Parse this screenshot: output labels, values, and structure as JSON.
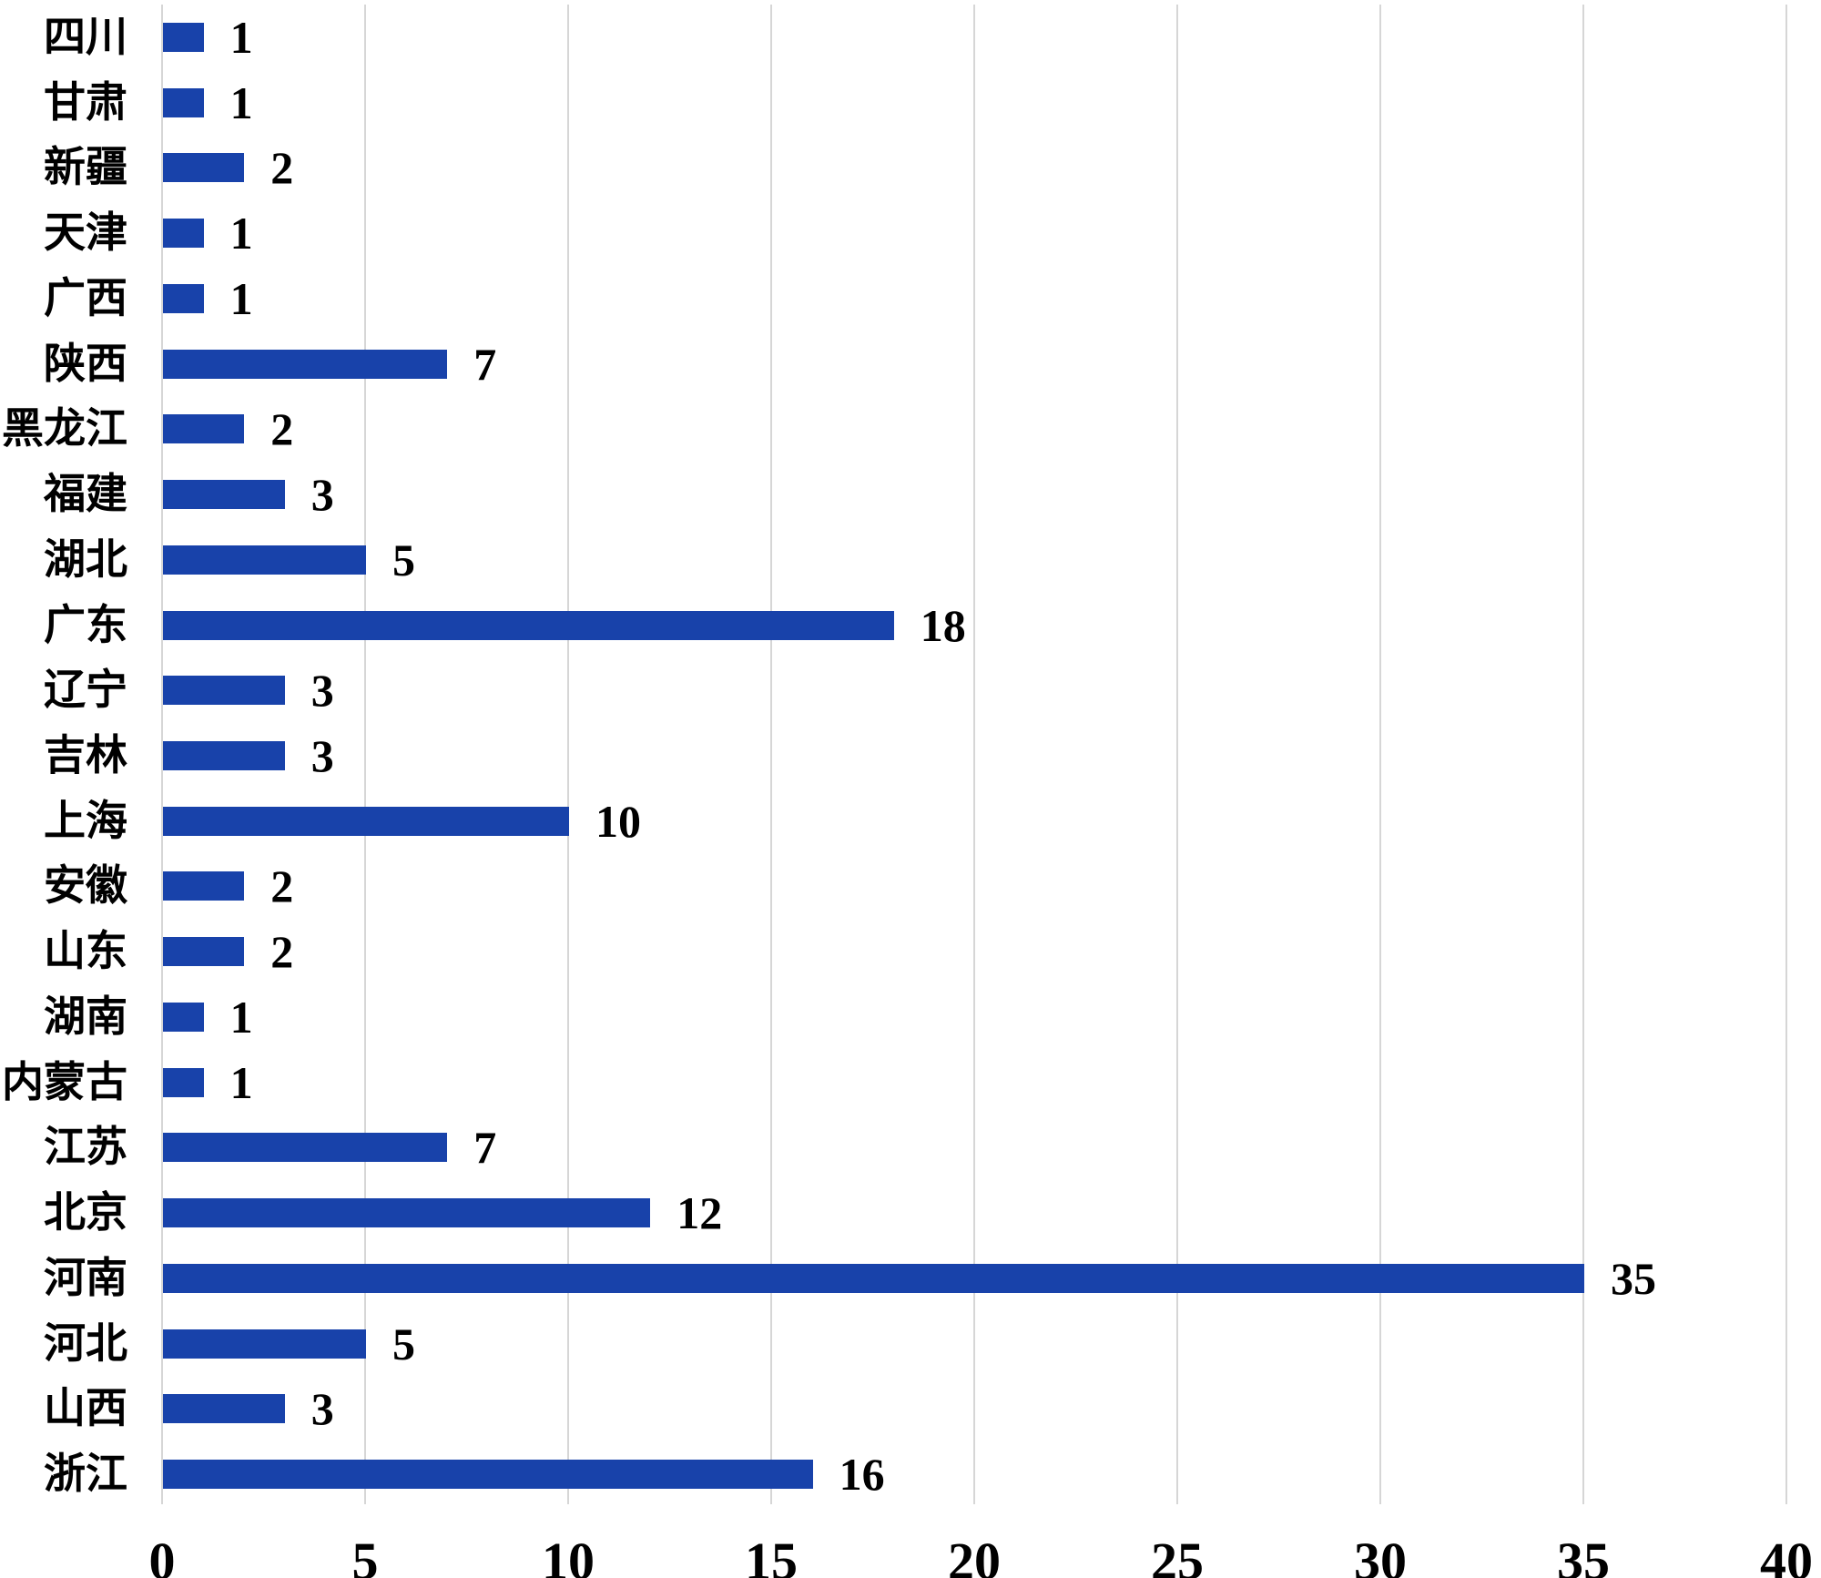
{
  "chart_data": {
    "type": "bar",
    "orientation": "horizontal",
    "title": "",
    "xlabel": "",
    "ylabel": "",
    "categories": [
      "四川",
      "甘肃",
      "新疆",
      "天津",
      "广西",
      "陕西",
      "黑龙江",
      "福建",
      "湖北",
      "广东",
      "辽宁",
      "吉林",
      "上海",
      "安徽",
      "山东",
      "湖南",
      "内蒙古",
      "江苏",
      "北京",
      "河南",
      "河北",
      "山西",
      "浙江"
    ],
    "values": [
      1,
      1,
      2,
      1,
      1,
      7,
      2,
      3,
      5,
      18,
      3,
      3,
      10,
      2,
      2,
      1,
      1,
      7,
      12,
      35,
      5,
      3,
      16
    ],
    "data_labels_shown": true,
    "xlim": [
      0,
      40
    ],
    "xticks": [
      0,
      5,
      10,
      15,
      20,
      25,
      30,
      35,
      40
    ],
    "grid": "vertical",
    "legend": "none",
    "colors": {
      "bar": "#1842aa",
      "gridline": "#d6d6d6",
      "text": "#000000",
      "background": "#ffffff"
    }
  }
}
